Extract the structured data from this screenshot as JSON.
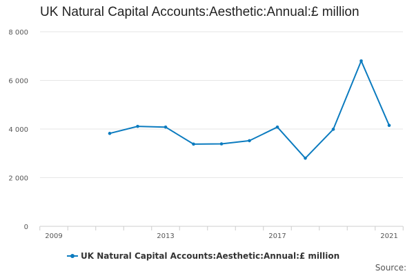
{
  "chart_data": {
    "type": "line",
    "title": "UK Natural Capital Accounts:Aesthetic:Annual:£ million",
    "xlabel": "",
    "ylabel": "",
    "x": [
      2011,
      2012,
      2013,
      2014,
      2015,
      2016,
      2017,
      2018,
      2019,
      2020,
      2021
    ],
    "series": [
      {
        "name": "UK Natural Capital Accounts:Aesthetic:Annual:£ million",
        "color": "#0b7bbf",
        "values": [
          3820,
          4110,
          4080,
          3380,
          3390,
          3520,
          4080,
          2800,
          3990,
          6800,
          4150
        ]
      }
    ],
    "xlim": [
      2009,
      2021
    ],
    "ylim": [
      0,
      8000
    ],
    "x_ticks": [
      2009,
      2013,
      2017,
      2021
    ],
    "x_tick_labels": [
      "2009",
      "2013",
      "2017",
      "2021"
    ],
    "y_ticks": [
      0,
      2000,
      4000,
      6000,
      8000
    ],
    "y_tick_labels": [
      "0",
      "2 000",
      "4 000",
      "6 000",
      "8 000"
    ],
    "grid": true,
    "legend": "bottom"
  },
  "footer": {
    "source_label": "Source:"
  }
}
